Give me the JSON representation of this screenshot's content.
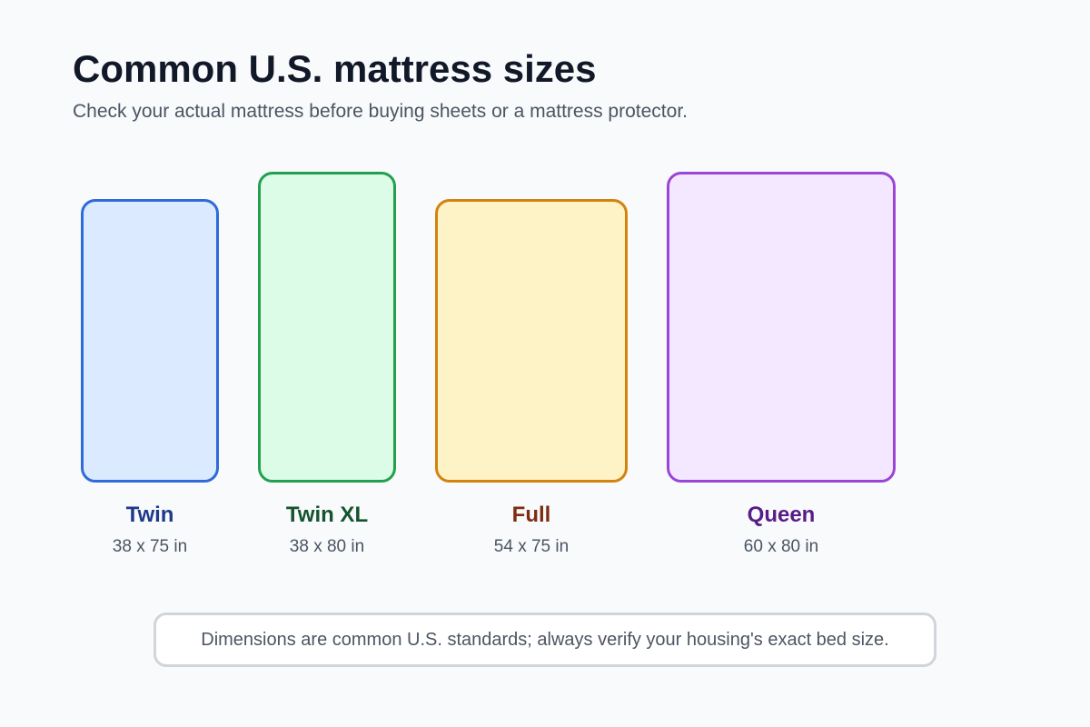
{
  "header": {
    "title": "Common U.S. mattress sizes",
    "subtitle": "Check your actual mattress before buying sheets or a mattress protector."
  },
  "mattresses": [
    {
      "name": "Twin",
      "dimensions": "38 x 75 in",
      "border_color": "#2f6ad9",
      "fill_color": "#dbeafe",
      "label_color": "#1e3a8a"
    },
    {
      "name": "Twin XL",
      "dimensions": "38 x 80 in",
      "border_color": "#22a04f",
      "fill_color": "#dcfce7",
      "label_color": "#14532d"
    },
    {
      "name": "Full",
      "dimensions": "54 x 75 in",
      "border_color": "#d4820e",
      "fill_color": "#fef3c7",
      "label_color": "#7c2d12"
    },
    {
      "name": "Queen",
      "dimensions": "60 x 80 in",
      "border_color": "#9b44d8",
      "fill_color": "#f3e8ff",
      "label_color": "#581c87"
    }
  ],
  "footer": {
    "note": "Dimensions are common U.S. standards; always verify your housing's exact bed size."
  }
}
